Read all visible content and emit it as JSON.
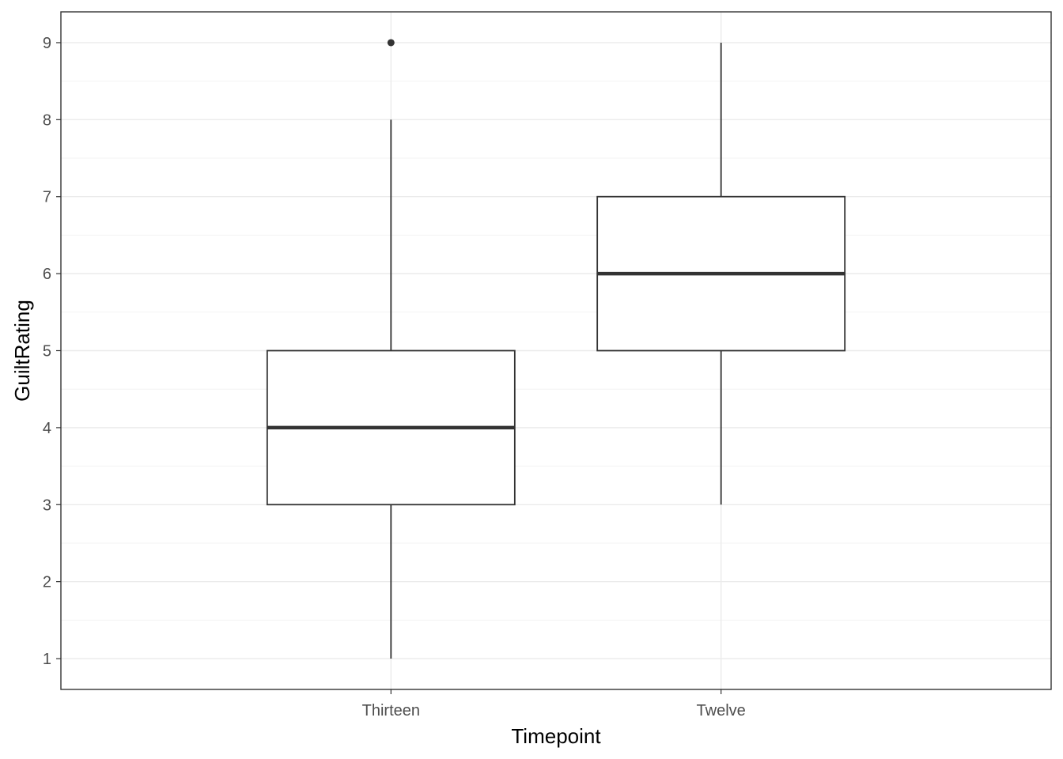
{
  "chart_data": {
    "type": "box",
    "xlabel": "Timepoint",
    "ylabel": "GuiltRating",
    "categories": [
      "Thirteen",
      "Twelve"
    ],
    "ylim": [
      0.6,
      9.4
    ],
    "yticks": [
      1,
      2,
      3,
      4,
      5,
      6,
      7,
      8,
      9
    ],
    "grid": true,
    "boxes": [
      {
        "category": "Thirteen",
        "whisker_low": 1,
        "q1": 3,
        "median": 4,
        "q3": 5,
        "whisker_high": 8,
        "outliers": [
          9
        ]
      },
      {
        "category": "Twelve",
        "whisker_low": 3,
        "q1": 5,
        "median": 6,
        "q3": 7,
        "whisker_high": 9,
        "outliers": []
      }
    ]
  },
  "colors": {
    "background": "#ffffff",
    "grid_major": "#ebebeb",
    "grid_minor": "#f3f3f3",
    "box_line": "#333333",
    "panel_border": "#333333",
    "tick_text": "#4d4d4d"
  }
}
